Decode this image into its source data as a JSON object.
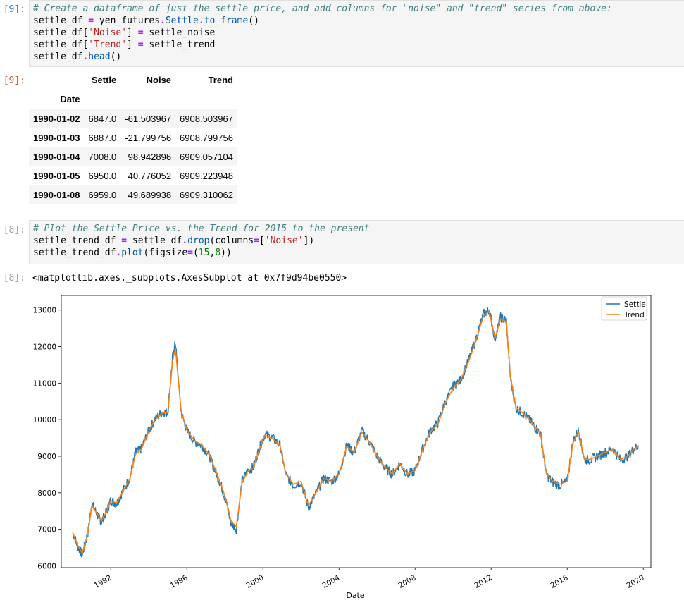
{
  "cell9": {
    "prompt": "[9]:",
    "code_tokens": [
      [
        {
          "t": "# Create a dataframe of just the settle price, and add columns for \"noise\" and \"trend\" series from above:",
          "c": "cm"
        }
      ],
      [
        {
          "t": "settle_df ",
          "c": ""
        },
        {
          "t": "=",
          "c": "op"
        },
        {
          "t": " yen_futures",
          "c": ""
        },
        {
          "t": ".",
          "c": "op"
        },
        {
          "t": "Settle",
          "c": "at"
        },
        {
          "t": ".",
          "c": "op"
        },
        {
          "t": "to_frame",
          "c": "at"
        },
        {
          "t": "()",
          "c": ""
        }
      ],
      [
        {
          "t": "settle_df[",
          "c": ""
        },
        {
          "t": "'Noise'",
          "c": "st"
        },
        {
          "t": "] ",
          "c": ""
        },
        {
          "t": "=",
          "c": "op"
        },
        {
          "t": " settle_noise",
          "c": ""
        }
      ],
      [
        {
          "t": "settle_df[",
          "c": ""
        },
        {
          "t": "'Trend'",
          "c": "st"
        },
        {
          "t": "] ",
          "c": ""
        },
        {
          "t": "=",
          "c": "op"
        },
        {
          "t": " settle_trend",
          "c": ""
        }
      ],
      [
        {
          "t": "settle_df",
          "c": ""
        },
        {
          "t": ".",
          "c": "op"
        },
        {
          "t": "head",
          "c": "at"
        },
        {
          "t": "()",
          "c": ""
        }
      ]
    ],
    "out_prompt": "[9]:",
    "table": {
      "columns": [
        "Settle",
        "Noise",
        "Trend"
      ],
      "index_name": "Date",
      "rows": [
        {
          "index": "1990-01-02",
          "values": [
            "6847.0",
            "-61.503967",
            "6908.503967"
          ]
        },
        {
          "index": "1990-01-03",
          "values": [
            "6887.0",
            "-21.799756",
            "6908.799756"
          ]
        },
        {
          "index": "1990-01-04",
          "values": [
            "7008.0",
            "98.942896",
            "6909.057104"
          ]
        },
        {
          "index": "1990-01-05",
          "values": [
            "6950.0",
            "40.776052",
            "6909.223948"
          ]
        },
        {
          "index": "1990-01-08",
          "values": [
            "6959.0",
            "49.689938",
            "6909.310062"
          ]
        }
      ]
    }
  },
  "cell8": {
    "prompt": "[8]:",
    "code_tokens": [
      [
        {
          "t": "# Plot the Settle Price vs. the Trend for 2015 to the present",
          "c": "cm"
        }
      ],
      [
        {
          "t": "settle_trend_df ",
          "c": ""
        },
        {
          "t": "=",
          "c": "op"
        },
        {
          "t": " settle_df",
          "c": ""
        },
        {
          "t": ".",
          "c": "op"
        },
        {
          "t": "drop",
          "c": "at"
        },
        {
          "t": "(columns",
          "c": ""
        },
        {
          "t": "=",
          "c": "op"
        },
        {
          "t": "[",
          "c": ""
        },
        {
          "t": "'Noise'",
          "c": "st"
        },
        {
          "t": "])",
          "c": ""
        }
      ],
      [
        {
          "t": "settle_trend_df",
          "c": ""
        },
        {
          "t": ".",
          "c": "op"
        },
        {
          "t": "plot",
          "c": "at"
        },
        {
          "t": "(figsize",
          "c": ""
        },
        {
          "t": "=",
          "c": "op"
        },
        {
          "t": "(",
          "c": ""
        },
        {
          "t": "15",
          "c": "nm"
        },
        {
          "t": ",",
          "c": ""
        },
        {
          "t": "8",
          "c": "nm"
        },
        {
          "t": "))",
          "c": ""
        }
      ]
    ],
    "out_prompt": "[8]:",
    "out_text": "<matplotlib.axes._subplots.AxesSubplot at 0x7f9d94be0550>"
  },
  "colors": {
    "settle": "#1f77b4",
    "trend": "#ff7f0e"
  },
  "chart_data": {
    "type": "line",
    "xlabel": "Date",
    "ylabel": "",
    "xlim": [
      1989.4,
      2020.4
    ],
    "ylim": [
      5950,
      13400
    ],
    "xticks": [
      1992,
      1996,
      2000,
      2004,
      2008,
      2012,
      2016,
      2020
    ],
    "yticks": [
      6000,
      7000,
      8000,
      9000,
      10000,
      11000,
      12000,
      13000
    ],
    "legend_position": "top-right",
    "grid": false,
    "series": [
      {
        "name": "Settle",
        "x": [
          1990.0,
          1990.3,
          1990.5,
          1990.8,
          1991.0,
          1991.3,
          1991.5,
          1991.8,
          1992.0,
          1992.3,
          1992.6,
          1993.0,
          1993.3,
          1993.6,
          1994.0,
          1994.3,
          1994.7,
          1995.0,
          1995.25,
          1995.4,
          1995.7,
          1996.0,
          1996.4,
          1996.8,
          1997.2,
          1997.5,
          1997.8,
          1998.1,
          1998.3,
          1998.6,
          1998.9,
          1999.2,
          1999.5,
          1999.8,
          2000.1,
          2000.5,
          2000.9,
          2001.2,
          2001.6,
          2002.0,
          2002.4,
          2002.8,
          2003.2,
          2003.6,
          2004.0,
          2004.4,
          2004.8,
          2005.2,
          2005.6,
          2006.0,
          2006.4,
          2006.8,
          2007.2,
          2007.6,
          2008.0,
          2008.4,
          2008.8,
          2009.2,
          2009.6,
          2010.0,
          2010.4,
          2010.8,
          2011.2,
          2011.6,
          2011.9,
          2012.2,
          2012.5,
          2012.8,
          2013.0,
          2013.3,
          2013.6,
          2014.0,
          2014.3,
          2014.6,
          2014.9,
          2015.2,
          2015.6,
          2016.0,
          2016.3,
          2016.6,
          2016.9,
          2017.2,
          2017.6,
          2018.0,
          2018.4,
          2018.8,
          2019.2,
          2019.5,
          2019.75
        ],
        "values": [
          6900,
          6500,
          6300,
          6900,
          7700,
          7400,
          7200,
          7500,
          7800,
          7700,
          8000,
          8400,
          9100,
          9200,
          9700,
          10000,
          10200,
          10200,
          11700,
          12100,
          10200,
          9700,
          9400,
          9300,
          9000,
          8600,
          8200,
          7700,
          7200,
          7000,
          8300,
          8600,
          8700,
          9200,
          9600,
          9500,
          9300,
          8500,
          8200,
          8300,
          7600,
          8000,
          8400,
          8300,
          8500,
          9300,
          9100,
          9700,
          9400,
          9000,
          8700,
          8500,
          8800,
          8500,
          8600,
          9200,
          9700,
          9900,
          10500,
          10900,
          11100,
          11600,
          12200,
          12900,
          13000,
          12200,
          12800,
          12700,
          11200,
          10300,
          10200,
          10000,
          9800,
          9600,
          8500,
          8300,
          8200,
          8300,
          9400,
          9700,
          8900,
          8900,
          9000,
          9100,
          9200,
          8900,
          9000,
          9200,
          9300
        ]
      },
      {
        "name": "Trend",
        "x": [
          1990.0,
          1990.3,
          1990.5,
          1990.8,
          1991.0,
          1991.3,
          1991.5,
          1991.8,
          1992.0,
          1992.3,
          1992.6,
          1993.0,
          1993.3,
          1993.6,
          1994.0,
          1994.3,
          1994.7,
          1995.0,
          1995.25,
          1995.4,
          1995.7,
          1996.0,
          1996.4,
          1996.8,
          1997.2,
          1997.5,
          1997.8,
          1998.1,
          1998.3,
          1998.6,
          1998.9,
          1999.2,
          1999.5,
          1999.8,
          2000.1,
          2000.5,
          2000.9,
          2001.2,
          2001.6,
          2002.0,
          2002.4,
          2002.8,
          2003.2,
          2003.6,
          2004.0,
          2004.4,
          2004.8,
          2005.2,
          2005.6,
          2006.0,
          2006.4,
          2006.8,
          2007.2,
          2007.6,
          2008.0,
          2008.4,
          2008.8,
          2009.2,
          2009.6,
          2010.0,
          2010.4,
          2010.8,
          2011.2,
          2011.6,
          2011.9,
          2012.2,
          2012.5,
          2012.8,
          2013.0,
          2013.3,
          2013.6,
          2014.0,
          2014.3,
          2014.6,
          2014.9,
          2015.2,
          2015.6,
          2016.0,
          2016.3,
          2016.6,
          2016.9,
          2017.2,
          2017.6,
          2018.0,
          2018.4,
          2018.8,
          2019.2,
          2019.5,
          2019.75
        ],
        "values": [
          6910,
          6520,
          6350,
          6880,
          7650,
          7420,
          7230,
          7500,
          7780,
          7720,
          7990,
          8380,
          9050,
          9180,
          9680,
          9980,
          10180,
          10190,
          11600,
          11950,
          10250,
          9720,
          9420,
          9310,
          9020,
          8620,
          8230,
          7740,
          7260,
          7060,
          8260,
          8580,
          8690,
          9170,
          9570,
          9480,
          9290,
          8520,
          8230,
          8310,
          7640,
          8010,
          8390,
          8310,
          8500,
          9270,
          9110,
          9660,
          9390,
          9010,
          8710,
          8520,
          8790,
          8510,
          8610,
          9180,
          9670,
          9870,
          10460,
          10860,
          11080,
          11570,
          12160,
          12850,
          12960,
          12230,
          12760,
          12680,
          11240,
          10340,
          10210,
          10010,
          9810,
          9610,
          8540,
          8330,
          8230,
          8320,
          9360,
          9670,
          8920,
          8910,
          9010,
          9100,
          9190,
          8910,
          9010,
          9190,
          9280
        ]
      }
    ]
  }
}
